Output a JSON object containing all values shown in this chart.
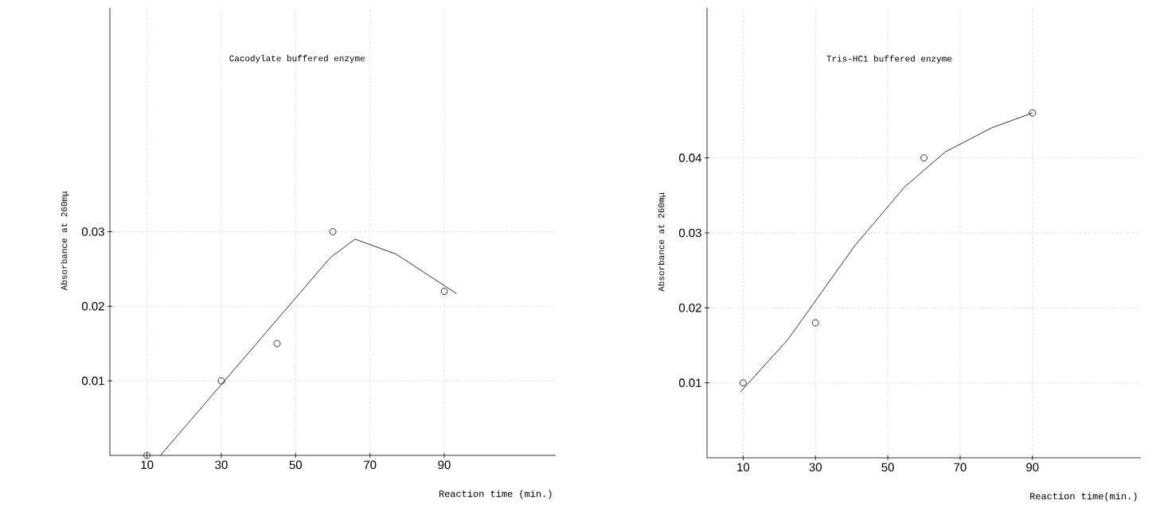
{
  "chart_data": [
    {
      "type": "scatter",
      "title": "Cacodylate buffered enzyme",
      "xlabel": "Reaction time (min.)",
      "ylabel": "Absorbance at 260mμ",
      "xlim": [
        0,
        120
      ],
      "ylim": [
        0,
        0.06
      ],
      "xticks": [
        10,
        30,
        50,
        70,
        90
      ],
      "yticks": [
        0.01,
        0.02,
        0.03
      ],
      "grid": true,
      "series": [
        {
          "color": "#000000",
          "marker": "circle",
          "x": [
            10,
            30,
            45,
            60,
            90
          ],
          "values": [
            0,
            0.01,
            0.015,
            0.03,
            0.022
          ]
        },
        {
          "type": "line",
          "color": "#000000",
          "marker": "none",
          "line_style": "solid",
          "x": [
            13.6,
            59.3,
            66,
            77,
            93.3
          ],
          "values": [
            0,
            0.0265,
            0.029,
            0.027,
            0.0217
          ]
        }
      ]
    },
    {
      "type": "scatter",
      "title": "Tris-HC1 buffered enzyme",
      "xlabel": "Reaction time(min.)",
      "ylabel": "Absorbance at 260mμ",
      "xlim": [
        0,
        120
      ],
      "ylim": [
        0,
        0.06
      ],
      "xticks": [
        10,
        30,
        50,
        70,
        90
      ],
      "yticks": [
        0.01,
        0.02,
        0.03,
        0.04
      ],
      "grid": true,
      "series": [
        {
          "color": "#000000",
          "marker": "circle",
          "x": [
            10,
            30,
            60,
            90
          ],
          "values": [
            0.01,
            0.018,
            0.04,
            0.046
          ]
        },
        {
          "type": "line",
          "color": "#000000",
          "marker": "none",
          "line_style": "solid",
          "x": [
            9.3,
            22.4,
            40.9,
            54.6,
            65.9,
            78.7,
            90
          ],
          "values": [
            0.0088,
            0.0158,
            0.0283,
            0.0361,
            0.0408,
            0.044,
            0.046
          ]
        }
      ]
    }
  ]
}
